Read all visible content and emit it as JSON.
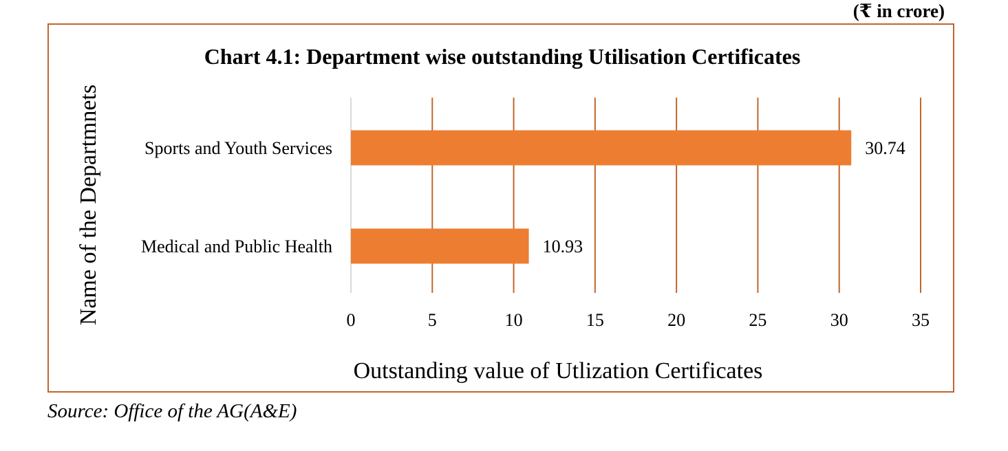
{
  "unit_note": "(₹ in crore)",
  "source_note": "Source: Office of the AG(A&E)",
  "colors": {
    "bar": "#ed7d31",
    "gridline": "#c0662a",
    "frame": "#c0662a",
    "axis": "#d9d9d9"
  },
  "chart_data": {
    "type": "bar",
    "orientation": "horizontal",
    "title": "Chart 4.1: Department wise outstanding Utilisation Certificates",
    "xlabel": "Outstanding value of Utlization Certificates",
    "ylabel": "Name of the Departmnets",
    "categories": [
      "Sports and Youth Services",
      "Medical and Public Health"
    ],
    "values": [
      30.74,
      10.93
    ],
    "data_labels": [
      "30.74",
      "10.93"
    ],
    "xlim": [
      0,
      35
    ],
    "xticks": [
      "0",
      "5",
      "10",
      "15",
      "20",
      "25",
      "30",
      "35"
    ],
    "grid": "vertical",
    "legend": "none"
  }
}
